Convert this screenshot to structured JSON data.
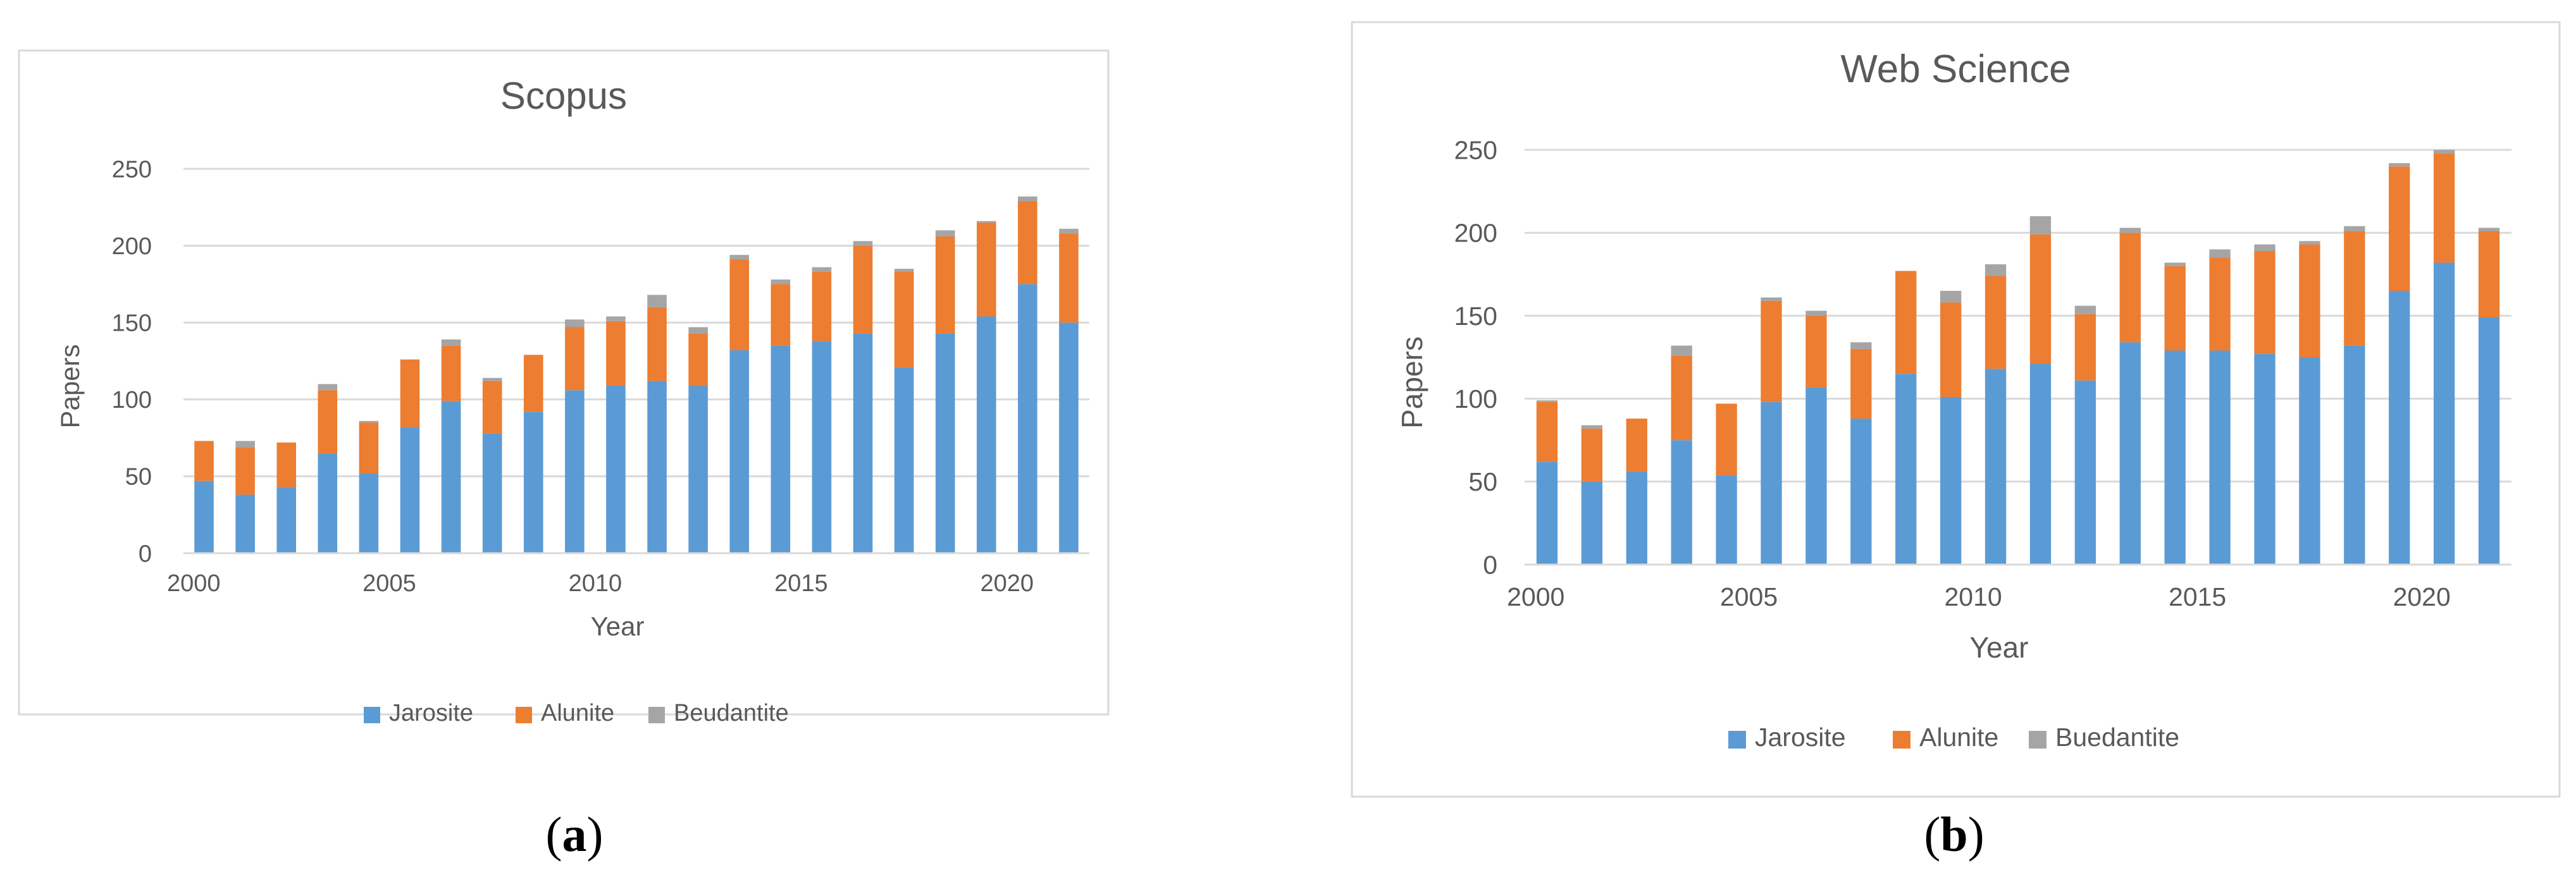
{
  "chart_data": [
    {
      "type": "bar",
      "stacked": true,
      "title": "Scopus",
      "xlabel": "Year",
      "ylabel": "Papers",
      "ylim": [
        0,
        250
      ],
      "yticks": [
        "0",
        "50",
        "100",
        "150",
        "200",
        "250"
      ],
      "xticks": [
        "2000",
        "2005",
        "2010",
        "2015",
        "2020"
      ],
      "grid": true,
      "legend": "bottom",
      "categories": [
        2000,
        2001,
        2002,
        2003,
        2004,
        2005,
        2006,
        2007,
        2008,
        2009,
        2010,
        2011,
        2012,
        2013,
        2014,
        2015,
        2016,
        2017,
        2018,
        2019,
        2020,
        2021
      ],
      "series": [
        {
          "name": "Jarosite",
          "color": "#5B9BD5",
          "values": [
            47,
            38,
            43,
            65,
            52,
            82,
            99,
            78,
            92,
            106,
            109,
            112,
            109,
            132,
            135,
            138,
            143,
            121,
            143,
            154,
            175,
            150
          ]
        },
        {
          "name": "Alunite",
          "color": "#ED7D31",
          "values": [
            26,
            31,
            29,
            41,
            33,
            44,
            36,
            34,
            37,
            41,
            42,
            48,
            34,
            59,
            40,
            45,
            57,
            62,
            63,
            61,
            54,
            58
          ]
        },
        {
          "name": "Beudantite",
          "color": "#A5A5A5",
          "values": [
            0,
            4,
            0,
            4,
            1,
            0,
            4,
            2,
            0,
            5,
            3,
            8,
            4,
            3,
            3,
            3,
            3,
            2,
            4,
            1,
            3,
            3
          ]
        }
      ],
      "panel_label": "a"
    },
    {
      "type": "bar",
      "stacked": true,
      "title": "Web Science",
      "xlabel": "Year",
      "ylabel": "Papers",
      "ylim": [
        0,
        250
      ],
      "yticks": [
        "0",
        "50",
        "100",
        "150",
        "200",
        "250"
      ],
      "xticks": [
        "2000",
        "2005",
        "2010",
        "2015",
        "2020"
      ],
      "grid": true,
      "legend": "bottom",
      "categories": [
        2000,
        2001,
        2002,
        2003,
        2004,
        2005,
        2006,
        2007,
        2008,
        2009,
        2010,
        2011,
        2012,
        2013,
        2014,
        2015,
        2016,
        2017,
        2018,
        2019,
        2020,
        2021
      ],
      "series": [
        {
          "name": "Jarosite",
          "color": "#5B9BD5",
          "values": [
            62,
            50,
            56,
            75,
            54,
            98,
            107,
            88,
            115,
            101,
            118,
            121,
            111,
            134,
            129,
            129,
            127,
            125,
            132,
            165,
            182,
            149
          ]
        },
        {
          "name": "Alunite",
          "color": "#ED7D31",
          "values": [
            36,
            32,
            32,
            51,
            43,
            61,
            43,
            42,
            62,
            57,
            56,
            78,
            40,
            66,
            51,
            56,
            62,
            68,
            69,
            75,
            66,
            52
          ]
        },
        {
          "name": "Buedantite",
          "color": "#A5A5A5",
          "values": [
            1,
            2,
            0,
            6,
            0,
            2,
            3,
            4,
            0,
            7,
            7,
            11,
            5,
            3,
            2,
            5,
            4,
            2,
            3,
            2,
            2,
            2
          ]
        }
      ],
      "panel_label": "b"
    }
  ]
}
